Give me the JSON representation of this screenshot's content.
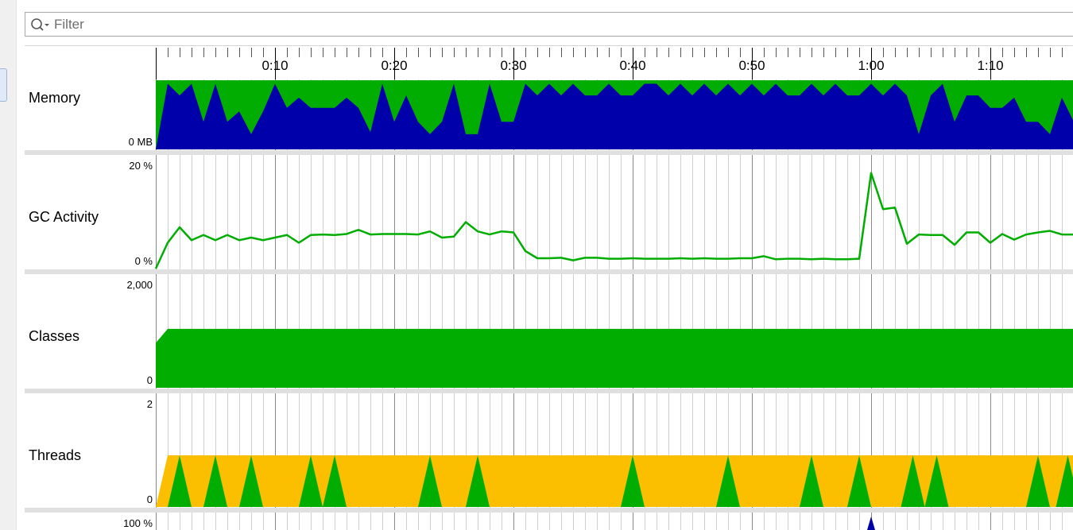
{
  "filter": {
    "placeholder": "Filter"
  },
  "time_axis": {
    "labels": [
      "0:10",
      "0:20",
      "0:30",
      "0:40",
      "0:50",
      "1:00",
      "1:10"
    ]
  },
  "rows": {
    "memory": {
      "label": "Memory",
      "y_min_label": "0 MB"
    },
    "gc": {
      "label": "GC Activity",
      "y_max_label": "20 %",
      "y_min_label": "0 %"
    },
    "classes": {
      "label": "Classes",
      "y_max_label": "2,000",
      "y_min_label": "0"
    },
    "threads": {
      "label": "Threads",
      "y_max_label": "2",
      "y_min_label": "0"
    },
    "cpu": {
      "y_max_label": "100 %"
    }
  },
  "colors": {
    "green": "#00ad00",
    "blue": "#0000aa",
    "yellow": "#fcbf00",
    "separator": "#e0e0e0"
  },
  "chart_data": [
    {
      "type": "area",
      "name": "Memory",
      "x": [
        0,
        1,
        2,
        3,
        4,
        5,
        6,
        7,
        8,
        9,
        10,
        11,
        12,
        13,
        14,
        15,
        16,
        17,
        18,
        19,
        20,
        21,
        22,
        23,
        24,
        25,
        26,
        27,
        28,
        29,
        30,
        31,
        32,
        33,
        34,
        35,
        36,
        37,
        38,
        39,
        40,
        41,
        42,
        43,
        44,
        45,
        46,
        47,
        48,
        49,
        50,
        51,
        52,
        53,
        54,
        55,
        56,
        57,
        58,
        59,
        60,
        61,
        62,
        63,
        64,
        65,
        66,
        67,
        68,
        69,
        70,
        71,
        72,
        73,
        74,
        75,
        76,
        77
      ],
      "series": [
        {
          "values": [
            0.0,
            0.95,
            0.78,
            0.95,
            0.4,
            0.95,
            0.4,
            0.55,
            0.22,
            0.55,
            0.95,
            0.6,
            0.75,
            0.6,
            0.6,
            0.6,
            0.75,
            0.6,
            0.25,
            0.95,
            0.4,
            0.78,
            0.4,
            0.22,
            0.4,
            0.95,
            0.22,
            0.22,
            0.95,
            0.4,
            0.4,
            0.95,
            0.78,
            0.95,
            0.78,
            0.95,
            0.78,
            0.78,
            0.95,
            0.78,
            0.78,
            0.95,
            0.95,
            0.78,
            0.95,
            0.78,
            0.95,
            0.78,
            0.95,
            0.78,
            0.95,
            0.78,
            0.95,
            0.78,
            0.78,
            0.95,
            0.78,
            0.95,
            0.78,
            0.78,
            0.95,
            0.78,
            0.95,
            0.78,
            0.22,
            0.78,
            0.95,
            0.4,
            0.78,
            0.78,
            0.6,
            0.6,
            0.75,
            0.4,
            0.4,
            0.22,
            0.75,
            0.4
          ]
        }
      ]
    },
    {
      "type": "line",
      "name": "GC Activity",
      "ylim": [
        0,
        20
      ],
      "x": [
        0,
        1,
        2,
        3,
        4,
        5,
        6,
        7,
        8,
        9,
        10,
        11,
        12,
        13,
        14,
        15,
        16,
        17,
        18,
        19,
        20,
        21,
        22,
        23,
        24,
        25,
        26,
        27,
        28,
        29,
        30,
        31,
        32,
        33,
        34,
        35,
        36,
        37,
        38,
        39,
        40,
        41,
        42,
        43,
        44,
        45,
        46,
        47,
        48,
        49,
        50,
        51,
        52,
        53,
        54,
        55,
        56,
        57,
        58,
        59,
        60,
        61,
        62,
        63,
        64,
        65,
        66,
        67,
        68,
        69,
        70,
        71,
        72,
        73,
        74,
        75,
        76,
        77
      ],
      "values": [
        0.0,
        5.0,
        8.0,
        5.5,
        6.5,
        5.5,
        6.5,
        5.5,
        6.0,
        5.5,
        6.0,
        6.5,
        5.0,
        6.5,
        6.6,
        6.5,
        6.7,
        7.5,
        6.6,
        6.7,
        6.7,
        6.7,
        6.6,
        7.2,
        6.0,
        6.2,
        9.0,
        7.2,
        6.6,
        7.2,
        7.0,
        3.4,
        2.0,
        2.0,
        2.1,
        1.6,
        2.1,
        2.1,
        1.9,
        1.9,
        2.0,
        1.9,
        1.9,
        1.9,
        2.0,
        1.9,
        2.0,
        1.9,
        1.9,
        2.0,
        2.0,
        2.4,
        1.8,
        1.9,
        1.9,
        1.8,
        1.9,
        1.8,
        1.8,
        1.9,
        18.5,
        11.5,
        11.8,
        4.8,
        6.6,
        6.5,
        6.5,
        4.6,
        7.0,
        7.0,
        5.0,
        6.7,
        5.6,
        6.6,
        7.0,
        7.3,
        6.6,
        6.6
      ]
    },
    {
      "type": "area",
      "name": "Classes",
      "ylim": [
        0,
        2000
      ],
      "x": [
        0,
        1,
        77
      ],
      "values": [
        870,
        1140,
        1140
      ]
    },
    {
      "type": "area",
      "name": "Threads",
      "ylim": [
        0,
        2
      ],
      "x_yellow": [
        0,
        1,
        77
      ],
      "yellow": [
        0,
        1,
        1
      ],
      "green_spikes": [
        2.0,
        5.0,
        8.0,
        13.0,
        15.0,
        23.0,
        27.0,
        40.0,
        48.0,
        55.0,
        59.0,
        63.5,
        65.5,
        74.0,
        76.5
      ]
    }
  ]
}
